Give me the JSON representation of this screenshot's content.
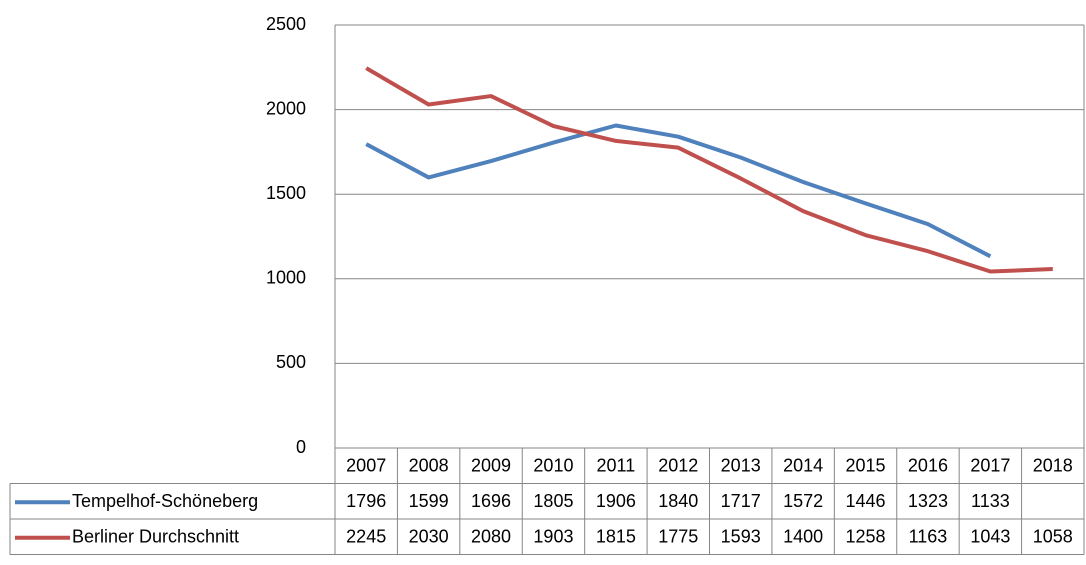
{
  "chart_data": {
    "type": "line",
    "categories": [
      "2007",
      "2008",
      "2009",
      "2010",
      "2011",
      "2012",
      "2013",
      "2014",
      "2015",
      "2016",
      "2017",
      "2018"
    ],
    "series": [
      {
        "name": "Tempelhof-Schöneberg",
        "color": "#4f81bd",
        "values": [
          1796,
          1599,
          1696,
          1805,
          1906,
          1840,
          1717,
          1572,
          1446,
          1323,
          1133,
          null
        ]
      },
      {
        "name": "Berliner Durchschnitt",
        "color": "#c0504d",
        "values": [
          2245,
          2030,
          2080,
          1903,
          1815,
          1775,
          1593,
          1400,
          1258,
          1163,
          1043,
          1058
        ]
      }
    ],
    "ylim": [
      0,
      2500
    ],
    "yticks": [
      0,
      500,
      1000,
      1500,
      2000,
      2500
    ],
    "grid": true,
    "data_table": true
  }
}
